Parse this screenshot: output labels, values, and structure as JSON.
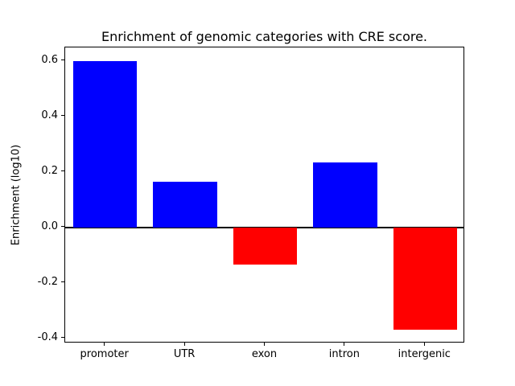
{
  "chart_data": {
    "type": "bar",
    "title": "Enrichment of genomic categories with CRE score.",
    "ylabel": "Enrichment (log10)",
    "xlabel": "",
    "categories": [
      "promoter",
      "UTR",
      "exon",
      "intron",
      "intergenic"
    ],
    "values": [
      0.6,
      0.165,
      -0.135,
      0.235,
      -0.37
    ],
    "bar_colors": [
      "#0000ff",
      "#0000ff",
      "#ff0000",
      "#0000ff",
      "#ff0000"
    ],
    "positive_color": "#0000ff",
    "negative_color": "#ff0000",
    "yticks": [
      -0.4,
      -0.2,
      0.0,
      0.2,
      0.4,
      0.6
    ],
    "ylim": [
      -0.4185,
      0.6485
    ],
    "grid": false,
    "legend": "none",
    "zero_line": true,
    "bar_width_fraction": 0.8
  }
}
